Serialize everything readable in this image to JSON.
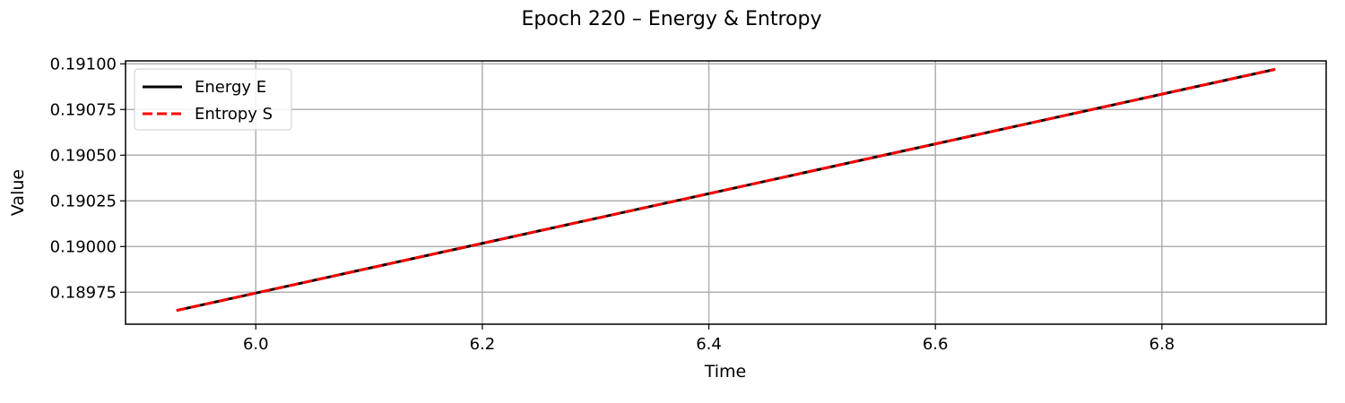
{
  "chart_data": {
    "type": "line",
    "title": "Epoch 220 – Energy & Entropy",
    "xlabel": "Time",
    "ylabel": "Value",
    "xlim": [
      5.885,
      6.945
    ],
    "ylim": [
      0.189575,
      0.191016
    ],
    "xticks": [
      6.0,
      6.2,
      6.4,
      6.6,
      6.8
    ],
    "xtick_labels": [
      "6.0",
      "6.2",
      "6.4",
      "6.6",
      "6.8"
    ],
    "yticks": [
      0.18975,
      0.19,
      0.19025,
      0.1905,
      0.19075,
      0.191
    ],
    "ytick_labels": [
      "0.18975",
      "0.19000",
      "0.19025",
      "0.19050",
      "0.19075",
      "0.19100"
    ],
    "grid": true,
    "legend_position": "top-left",
    "series": [
      {
        "name": "Energy E",
        "color": "#000000",
        "dash": "solid",
        "x": [
          5.93,
          6.9
        ],
        "y": [
          0.18965,
          0.19097
        ]
      },
      {
        "name": "Entropy S",
        "color": "#ff0000",
        "dash": "dashed",
        "x": [
          5.93,
          6.9
        ],
        "y": [
          0.18965,
          0.19097
        ]
      }
    ]
  }
}
